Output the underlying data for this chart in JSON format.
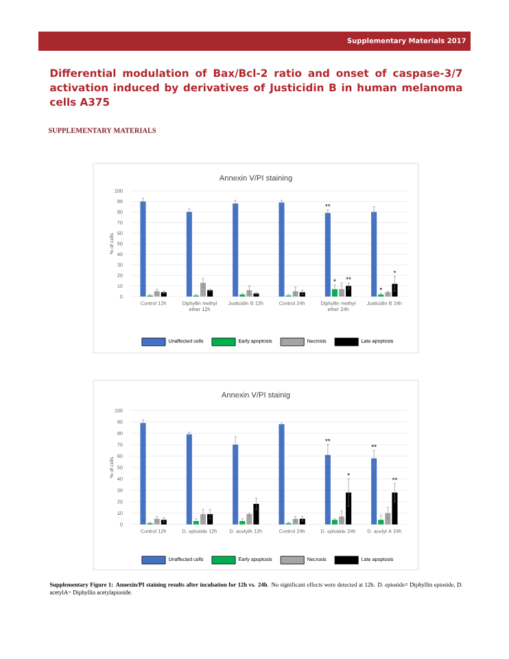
{
  "chart_data": [
    {
      "type": "bar",
      "title": "Annexin V/PI staining",
      "ylabel": "% of cells",
      "categories": [
        "Control 12h",
        "Diphyllin methyl ether 12h",
        "Justicidin B 12h",
        "Control 24h",
        "Diphyllin methyl ether 24h",
        "Justicidin B 24h"
      ],
      "series": [
        {
          "name": "Unaffected cells",
          "color": "#4472c4",
          "values": [
            90,
            80,
            88,
            89,
            79,
            80
          ],
          "errors": [
            3,
            3,
            3,
            2,
            3,
            5
          ],
          "value_labels": [
            null,
            null,
            null,
            null,
            "**",
            null
          ]
        },
        {
          "name": "Early apoptosis",
          "color": "#00b050",
          "values": [
            1,
            1,
            2,
            1,
            7,
            2
          ],
          "errors": [
            1,
            1,
            1,
            1,
            4,
            1
          ],
          "value_labels": [
            null,
            null,
            null,
            null,
            "*",
            "*"
          ]
        },
        {
          "name": "Necrosis",
          "color": "#a5a5a5",
          "values": [
            5,
            13,
            6,
            5,
            7,
            4
          ],
          "errors": [
            2,
            4,
            4,
            4,
            6,
            1
          ]
        },
        {
          "name": "Late apoptosis",
          "color": "#000000",
          "values": [
            4,
            6,
            3,
            4,
            10,
            12
          ],
          "errors": [
            1,
            1,
            1,
            2,
            3,
            7
          ],
          "value_labels": [
            null,
            null,
            null,
            null,
            "**",
            "*"
          ]
        }
      ],
      "ylim": [
        0,
        100
      ],
      "yticks": [
        0,
        10,
        20,
        30,
        40,
        50,
        60,
        70,
        80,
        90,
        100
      ],
      "grid": "y",
      "legend": "bottom",
      "annotations": [
        "Supplementary Materials 2017",
        "Differential modulation of Bax/Bcl-2 ratio and onset of caspase-3/7 activation induced by derivatives of Justicidin B in human melanoma cells A375",
        "SUPPLEMENTARY MATERIALS"
      ]
    },
    {
      "type": "bar",
      "title": "Annexin V/PI stainig",
      "ylabel": "% of cells",
      "categories": [
        "Control 12h",
        "D. epioside 12h",
        "D. acetylA 12h",
        "Control 24h",
        "D. epioside 24h",
        "D. acetyl A 24h"
      ],
      "series": [
        {
          "name": "Unaffected cells",
          "color": "#4472c4",
          "values": [
            89,
            79,
            70,
            88,
            61,
            58
          ],
          "errors": [
            3,
            2,
            7,
            1,
            9,
            7
          ],
          "value_labels": [
            null,
            null,
            null,
            null,
            "**",
            "**"
          ]
        },
        {
          "name": "Early apoptosis",
          "color": "#00b050",
          "values": [
            1,
            3,
            3,
            1,
            4,
            4
          ],
          "errors": [
            1,
            2,
            2,
            1,
            1,
            4
          ]
        },
        {
          "name": "Necrosis",
          "color": "#a5a5a5",
          "values": [
            5,
            9,
            9,
            5,
            7,
            10
          ],
          "errors": [
            2,
            4,
            1,
            2,
            5,
            5
          ]
        },
        {
          "name": "Late apoptosis",
          "color": "#000000",
          "values": [
            4,
            9,
            18,
            5,
            28,
            28
          ],
          "errors": [
            2,
            4,
            5,
            2,
            12,
            8
          ],
          "value_labels": [
            null,
            null,
            null,
            null,
            "*",
            "**"
          ]
        }
      ],
      "ylim": [
        0,
        100
      ],
      "yticks": [
        0,
        10,
        20,
        30,
        40,
        50,
        60,
        70,
        80,
        90,
        100
      ],
      "grid": "y",
      "legend": "bottom",
      "annotations": [
        "**Supplementary Figure 1: Annexin/PI staining results after incubation for 12h vs. 24h**. No significant effects were detected at 12h. D. epioside= Diphyllin epioside, D. acetylA= Diphyllin acetylapioside."
      ]
    }
  ]
}
